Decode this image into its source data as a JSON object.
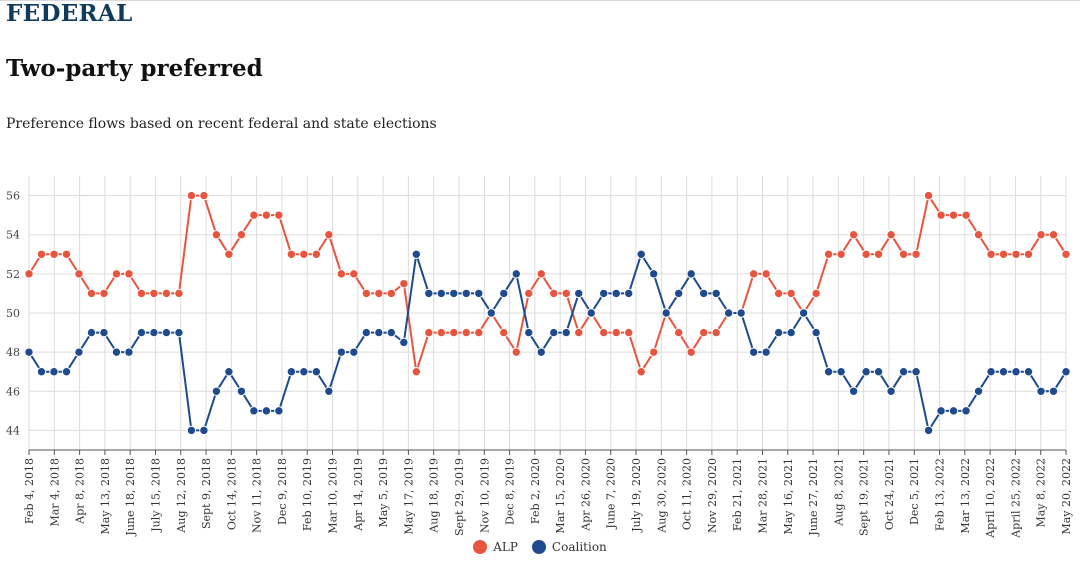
{
  "header": {
    "section": "FEDERAL",
    "title": "Two-party preferred",
    "subtitle": "Preference flows based on recent federal and state elections"
  },
  "colors": {
    "alp": "#e8553f",
    "coalition": "#1f4b8e",
    "grid": "#dcdcdc",
    "axis": "#555555"
  },
  "chart_data": {
    "type": "line",
    "title": "Two-party preferred",
    "xlabel": "",
    "ylabel": "",
    "ylim": [
      43,
      57
    ],
    "yticks": [
      44,
      46,
      48,
      50,
      52,
      54,
      56
    ],
    "grid": true,
    "legend": "bottom-center",
    "x_tick_labels": [
      "Feb 4, 2018",
      "Mar 4, 2018",
      "Apr 8, 2018",
      "May 13, 2018",
      "June 18, 2018",
      "July 15, 2018",
      "Aug 12, 2018",
      "Sept 9, 2018",
      "Oct 14, 2018",
      "Nov 11, 2018",
      "Dec 9, 2018",
      "Feb 10, 2019",
      "Mar 10, 2019",
      "Apr 14, 2019",
      "May 5, 2019",
      "May 17, 2019",
      "Aug 18, 2019",
      "Sept 29, 2019",
      "Nov 10, 2019",
      "Dec 8, 2019",
      "Feb 2, 2020",
      "Mar 15, 2020",
      "Apr 26, 2020",
      "June 7, 2020",
      "July 19, 2020",
      "Aug 30, 2020",
      "Oct 11, 2020",
      "Nov 29, 2020",
      "Feb 21, 2021",
      "Mar 28, 2021",
      "May 16, 2021",
      "June 27, 2021",
      "Aug 8, 2021",
      "Sept 19, 2021",
      "Oct 24, 2021",
      "Dec 5, 2021",
      "Feb 13, 2022",
      "Mar 13, 2022",
      "April 10, 2022",
      "April 25, 2022",
      "May 8, 2022",
      "May 20, 2022"
    ],
    "series": [
      {
        "name": "ALP",
        "values": [
          52,
          53,
          53,
          53,
          52,
          51,
          51,
          52,
          52,
          51,
          51,
          51,
          51,
          56,
          56,
          54,
          53,
          54,
          55,
          55,
          55,
          53,
          53,
          53,
          54,
          52,
          52,
          51,
          51,
          51,
          51.5,
          47,
          49,
          49,
          49,
          49,
          49,
          50,
          49,
          48,
          51,
          52,
          51,
          51,
          49,
          50,
          49,
          49,
          49,
          47,
          48,
          50,
          49,
          48,
          49,
          49,
          50,
          50,
          52,
          52,
          51,
          51,
          50,
          51,
          53,
          53,
          54,
          53,
          53,
          54,
          53,
          53,
          56,
          55,
          55,
          55,
          54,
          53,
          53,
          53,
          53,
          54,
          54,
          53
        ]
      },
      {
        "name": "Coalition",
        "values": [
          48,
          47,
          47,
          47,
          48,
          49,
          49,
          48,
          48,
          49,
          49,
          49,
          49,
          44,
          44,
          46,
          47,
          46,
          45,
          45,
          45,
          47,
          47,
          47,
          46,
          48,
          48,
          49,
          49,
          49,
          48.5,
          53,
          51,
          51,
          51,
          51,
          51,
          50,
          51,
          52,
          49,
          48,
          49,
          49,
          51,
          50,
          51,
          51,
          51,
          53,
          52,
          50,
          51,
          52,
          51,
          51,
          50,
          50,
          48,
          48,
          49,
          49,
          50,
          49,
          47,
          47,
          46,
          47,
          47,
          46,
          47,
          47,
          44,
          45,
          45,
          45,
          46,
          47,
          47,
          47,
          47,
          46,
          46,
          47
        ]
      }
    ]
  }
}
